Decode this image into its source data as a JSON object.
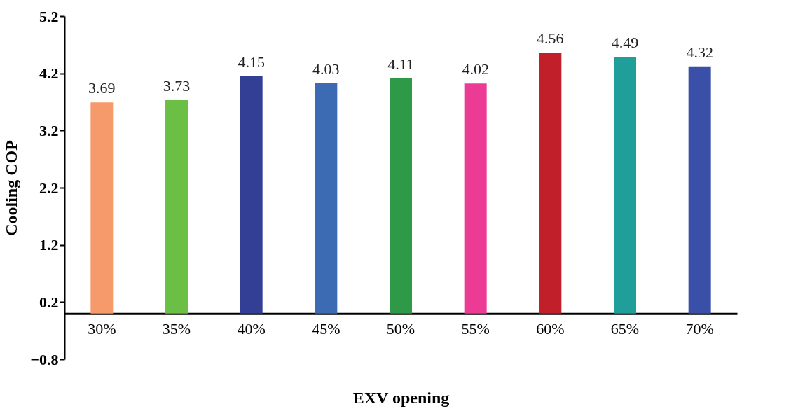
{
  "chart_data": {
    "type": "bar",
    "xlabel": "EXV opening",
    "ylabel": "Cooling COP",
    "categories": [
      "30%",
      "35%",
      "40%",
      "45%",
      "50%",
      "55%",
      "60%",
      "65%",
      "70%"
    ],
    "values": [
      3.69,
      3.73,
      4.15,
      4.03,
      4.11,
      4.02,
      4.56,
      4.49,
      4.32
    ],
    "colors": [
      "#f79a6b",
      "#6cbf45",
      "#323f95",
      "#3c6ab3",
      "#2e9a47",
      "#ec3b95",
      "#c1202a",
      "#1f9e9a",
      "#3a4fa8"
    ],
    "ylim": [
      -0.8,
      5.2
    ],
    "yticks": [
      -0.8,
      0.2,
      1.2,
      2.2,
      3.2,
      4.2,
      5.2
    ],
    "data_labels": true,
    "grid": false
  }
}
